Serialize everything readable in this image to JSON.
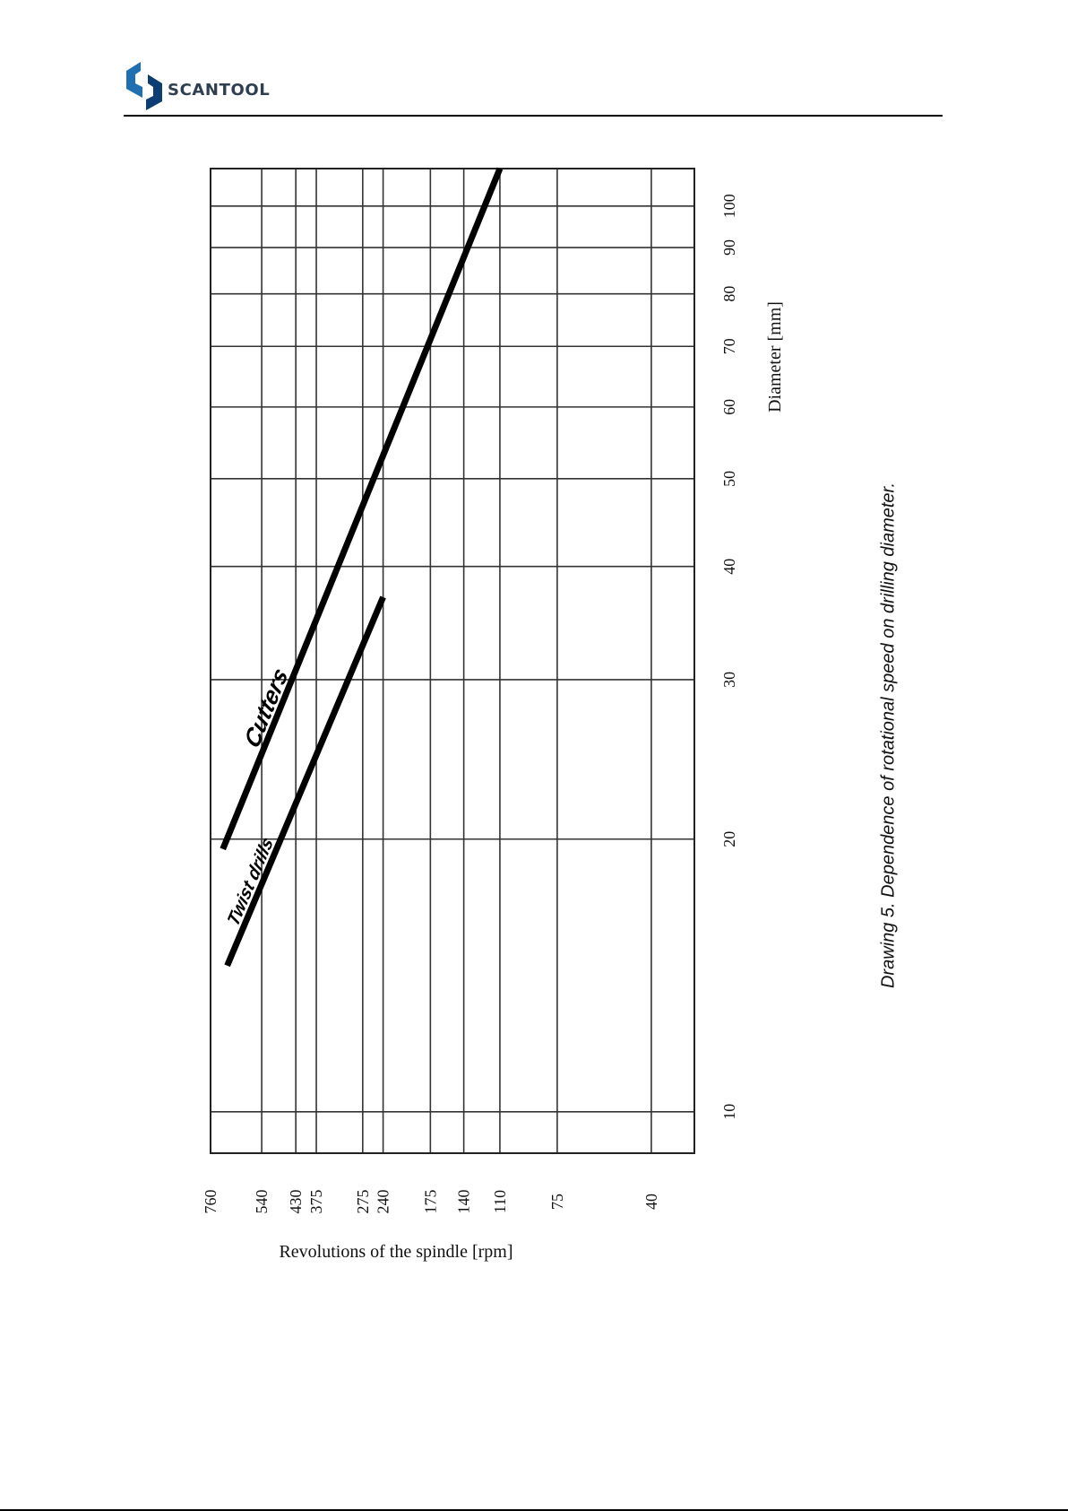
{
  "header": {
    "brand": "SCANTOOL",
    "colors": {
      "logo_light": "#1f6fb3",
      "logo_dark": "#0d3e73",
      "text": "#2f3f4f"
    }
  },
  "caption": "Drawing 5.  Dependence of rotational speed on drilling diameter.",
  "chart_data": {
    "type": "line",
    "orientation": "rotated 90° counter-clockwise on the page",
    "xlabel": "Revolutions of the spindle [rpm]",
    "ylabel": "Diameter [mm]",
    "x_scale": "log",
    "y_scale": "log",
    "x_ticks": [
      "760",
      "540",
      "430",
      "375",
      "275",
      "240",
      "175",
      "140",
      "110",
      "75",
      "40"
    ],
    "y_ticks": [
      "10",
      "20",
      "30",
      "40",
      "50",
      "60",
      "70",
      "80",
      "90",
      "100"
    ],
    "ylim": [
      9,
      110
    ],
    "grid": true,
    "series": [
      {
        "name": "Cutters",
        "x": [
          700,
          110
        ],
        "y": [
          19.5,
          110
        ]
      },
      {
        "name": "Twist drills",
        "x": [
          680,
          240
        ],
        "y": [
          14.5,
          37
        ]
      }
    ]
  }
}
